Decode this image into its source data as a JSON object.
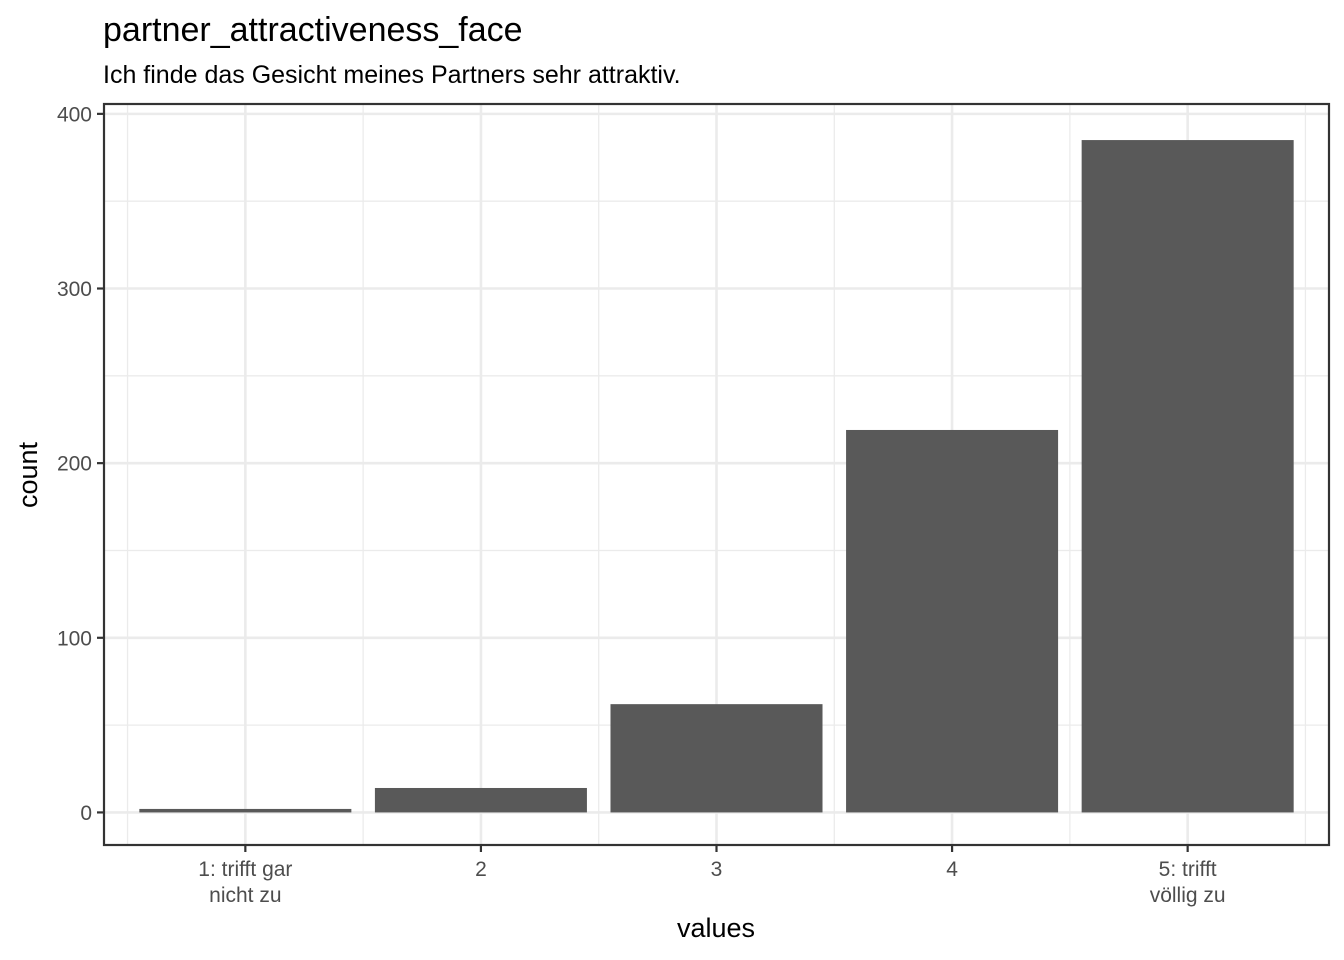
{
  "chart_data": {
    "type": "bar",
    "title": "partner_attractiveness_face",
    "subtitle": "Ich finde das Gesicht meines Partners sehr attraktiv.",
    "xlabel": "values",
    "ylabel": "count",
    "categories": [
      "1: trifft gar\nnicht zu",
      "2",
      "3",
      "4",
      "5: trifft\nvöllig zu"
    ],
    "values": [
      2,
      14,
      62,
      219,
      385
    ],
    "ylim": [
      -18.65,
      405.65
    ],
    "yticks": [
      0,
      100,
      200,
      300,
      400
    ],
    "grid": true,
    "bar_color": "#595959",
    "background": "#ffffff",
    "grid_color": "#ebebeb",
    "border_color": "#333333",
    "tick_label_color": "#4d4d4d"
  }
}
